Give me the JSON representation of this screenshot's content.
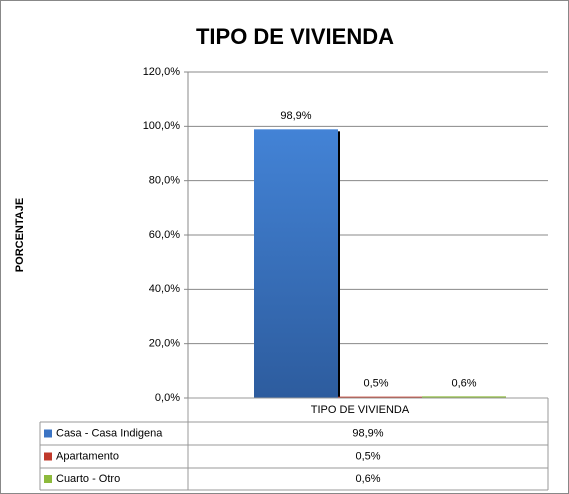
{
  "chart_data": {
    "type": "bar",
    "title": "TIPO DE VIVIENDA",
    "y_label": "PORCENTAJE",
    "categories": [
      "TIPO DE VIVIENDA"
    ],
    "series": [
      {
        "name": "Casa - Casa Indigena",
        "color": "#3b74c4",
        "values": [
          98.9
        ],
        "value_labels": [
          "98,9%"
        ]
      },
      {
        "name": "Apartamento",
        "color": "#c0392b",
        "values": [
          0.5
        ],
        "value_labels": [
          "0,5%"
        ]
      },
      {
        "name": "Cuarto - Otro",
        "color": "#8dba3c",
        "values": [
          0.6
        ],
        "value_labels": [
          "0,6%"
        ]
      }
    ],
    "ylim": [
      0,
      120
    ],
    "yticks": [
      {
        "value": 0,
        "label": "0,0%"
      },
      {
        "value": 20,
        "label": "20,0%"
      },
      {
        "value": 40,
        "label": "40,0%"
      },
      {
        "value": 60,
        "label": "60,0%"
      },
      {
        "value": 80,
        "label": "80,0%"
      },
      {
        "value": 100,
        "label": "100,0%"
      },
      {
        "value": 120,
        "label": "120,0%"
      }
    ],
    "grid": true
  }
}
